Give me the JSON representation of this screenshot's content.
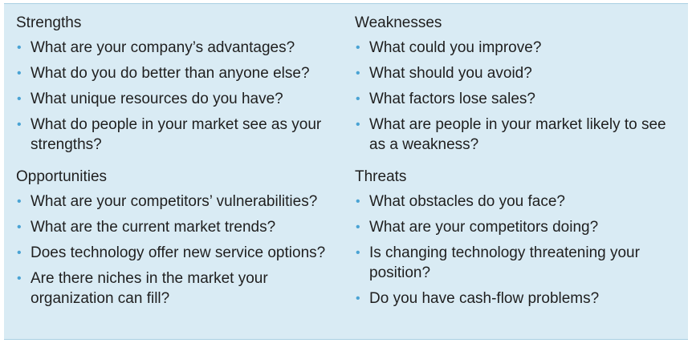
{
  "strengths": {
    "title": "Strengths",
    "items": [
      "What are your company’s advantages?",
      "What do you do better than anyone else?",
      "What unique resources do you have?",
      "What do people in your market see as your strengths?"
    ]
  },
  "weaknesses": {
    "title": "Weaknesses",
    "items": [
      "What could you improve?",
      "What should you avoid?",
      "What factors lose sales?",
      "What are people in your market likely to see as a weakness?"
    ]
  },
  "opportunities": {
    "title": "Opportunities",
    "items": [
      "What are your competitors’ vulnerabilities?",
      "What are the current market trends?",
      "Does technology offer new service options?",
      "Are there niches in the market your organization can fill?"
    ]
  },
  "threats": {
    "title": "Threats",
    "items": [
      "What obstacles do you face?",
      "What are your competitors doing?",
      "Is changing technology threatening your position?",
      "Do you have cash-flow problems?"
    ]
  },
  "colors": {
    "panel": "#d9ebf4",
    "bullet": "#4aa3d4",
    "text": "#1f1f1f"
  }
}
